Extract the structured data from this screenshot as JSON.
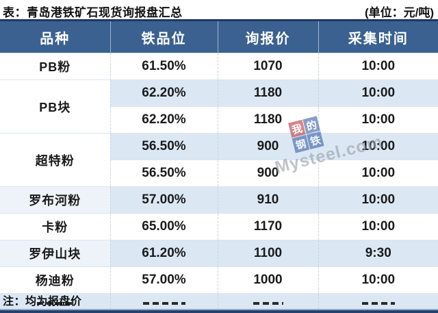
{
  "title": "表：青岛港铁矿石现货询报盘汇总",
  "unit": "(单位：元/吨)",
  "note": "注：均为报盘价",
  "watermark": {
    "chars": [
      "我",
      "的",
      "钢",
      "铁"
    ],
    "text": "Mysteel.com"
  },
  "table": {
    "headers": [
      "品种",
      "铁品位",
      "询报价",
      "采集时间"
    ],
    "groups": [
      {
        "variety": "PB粉",
        "entries": [
          [
            "61.50%",
            "1070",
            "10:00"
          ]
        ]
      },
      {
        "variety": "PB块",
        "entries": [
          [
            "62.20%",
            "1180",
            "10:00"
          ],
          [
            "62.20%",
            "1180",
            "10:00"
          ]
        ]
      },
      {
        "variety": "超特粉",
        "entries": [
          [
            "56.50%",
            "900",
            "10:00"
          ],
          [
            "56.50%",
            "900",
            "10:00"
          ]
        ]
      },
      {
        "variety": "罗布河粉",
        "entries": [
          [
            "57.00%",
            "910",
            "10:00"
          ]
        ]
      },
      {
        "variety": "卡粉",
        "entries": [
          [
            "65.00%",
            "1170",
            "10:00"
          ]
        ]
      },
      {
        "variety": "罗伊山块",
        "entries": [
          [
            "61.20%",
            "1100",
            "9:30"
          ]
        ]
      },
      {
        "variety": "杨迪粉",
        "entries": [
          [
            "57.00%",
            "1000",
            "10:00"
          ]
        ]
      }
    ]
  },
  "colors": {
    "header_bg": "#3A6190",
    "dark_border": "#1F3864",
    "stripe_row": "#DBE8F4",
    "stripe_variety": "#EEF3F9",
    "watermark_red_tile": "#C13A44",
    "watermark_blue_tile": "#3E63A9",
    "watermark_text_gray": "#9AA0A8"
  },
  "chart_data": {
    "type": "table",
    "title": "表：青岛港铁矿石现货询报盘汇总",
    "unit_label": "(单位：元/吨)",
    "note": "注：均为报盘价",
    "columns": [
      "品种",
      "铁品位",
      "询报价",
      "采集时间"
    ],
    "rows": [
      [
        "PB粉",
        "61.50%",
        1070,
        "10:00"
      ],
      [
        "PB块",
        "62.20%",
        1180,
        "10:00"
      ],
      [
        "PB块",
        "62.20%",
        1180,
        "10:00"
      ],
      [
        "超特粉",
        "56.50%",
        900,
        "10:00"
      ],
      [
        "超特粉",
        "56.50%",
        900,
        "10:00"
      ],
      [
        "罗布河粉",
        "57.00%",
        910,
        "10:00"
      ],
      [
        "卡粉",
        "65.00%",
        1170,
        "10:00"
      ],
      [
        "罗伊山块",
        "61.20%",
        1100,
        "9:30"
      ],
      [
        "杨迪粉",
        "57.00%",
        1000,
        "10:00"
      ]
    ]
  }
}
